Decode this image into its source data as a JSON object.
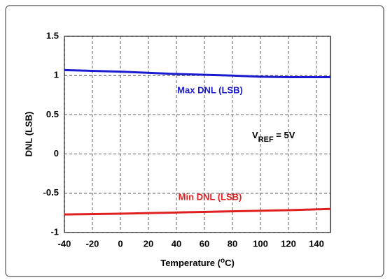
{
  "chart_data": {
    "type": "line",
    "y_label": "DNL (LSB)",
    "x_label": [
      "Temperature (",
      "o",
      "C)"
    ],
    "annotations": [
      {
        "text": "Max DNL (LSB)",
        "color": "#1a1ad0"
      },
      {
        "text": "Min DNL (LSB)",
        "color": "#e02020"
      }
    ],
    "vref": [
      "V",
      "REF",
      " = 5V"
    ],
    "xlim": [
      -40,
      150
    ],
    "xticks": [
      -40,
      -20,
      0,
      20,
      40,
      60,
      80,
      100,
      120,
      140
    ],
    "ylim": [
      -1,
      1.5
    ],
    "yticks": [
      1.5,
      1,
      0.5,
      0,
      -0.5,
      -1
    ],
    "grid": true,
    "series": [
      {
        "name": "Max DNL (LSB)",
        "color": "#1a1ad0",
        "x": [
          -40,
          0,
          40,
          80,
          100,
          120,
          150
        ],
        "values": [
          1.07,
          1.05,
          1.02,
          1.0,
          0.985,
          0.98,
          0.98
        ]
      },
      {
        "name": "Min DNL (LSB)",
        "color": "#e02020",
        "x": [
          -40,
          0,
          40,
          80,
          120,
          150
        ],
        "values": [
          -0.77,
          -0.76,
          -0.745,
          -0.73,
          -0.715,
          -0.7
        ]
      }
    ]
  }
}
